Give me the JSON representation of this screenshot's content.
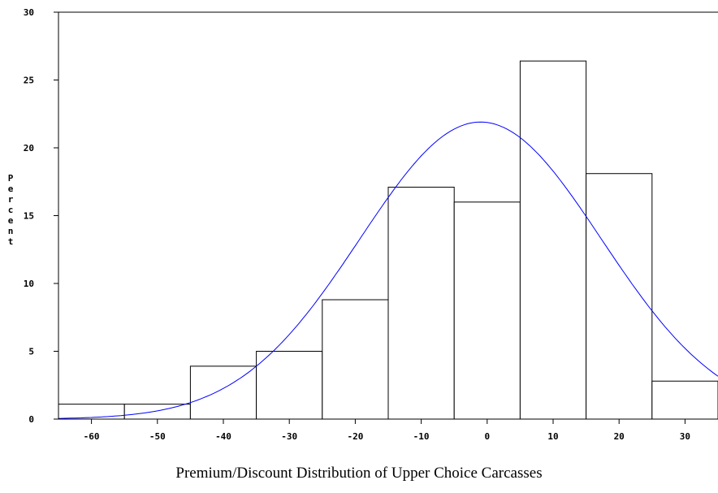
{
  "chart_data": {
    "type": "bar",
    "subtype": "histogram-with-normal-curve",
    "title": "Premium/Discount Distribution of Upper Choice Carcasses",
    "xlabel": "",
    "ylabel": "Percent",
    "xlim": [
      -65,
      35
    ],
    "ylim": [
      0,
      30
    ],
    "x_ticks": [
      -60,
      -50,
      -40,
      -30,
      -20,
      -10,
      0,
      10,
      20,
      30
    ],
    "y_ticks": [
      0,
      5,
      10,
      15,
      20,
      25,
      30
    ],
    "bin_width": 10,
    "bins": [
      {
        "start": -65,
        "end": -55,
        "value": 1.1
      },
      {
        "start": -55,
        "end": -45,
        "value": 1.1
      },
      {
        "start": -45,
        "end": -35,
        "value": 3.9
      },
      {
        "start": -35,
        "end": -25,
        "value": 5.0
      },
      {
        "start": -25,
        "end": -15,
        "value": 8.8
      },
      {
        "start": -15,
        "end": -5,
        "value": 17.1
      },
      {
        "start": -5,
        "end": 5,
        "value": 16.0
      },
      {
        "start": 5,
        "end": 15,
        "value": 26.4
      },
      {
        "start": 15,
        "end": 25,
        "value": 18.1
      },
      {
        "start": 25,
        "end": 35,
        "value": 2.8
      }
    ],
    "curve": {
      "type": "normal",
      "mean": -1,
      "sd": 18.3,
      "peak": 21.9,
      "color": "#0000ff"
    },
    "bar_fill": "#ffffff",
    "bar_stroke": "#000000",
    "grid": false,
    "legend": "none"
  }
}
